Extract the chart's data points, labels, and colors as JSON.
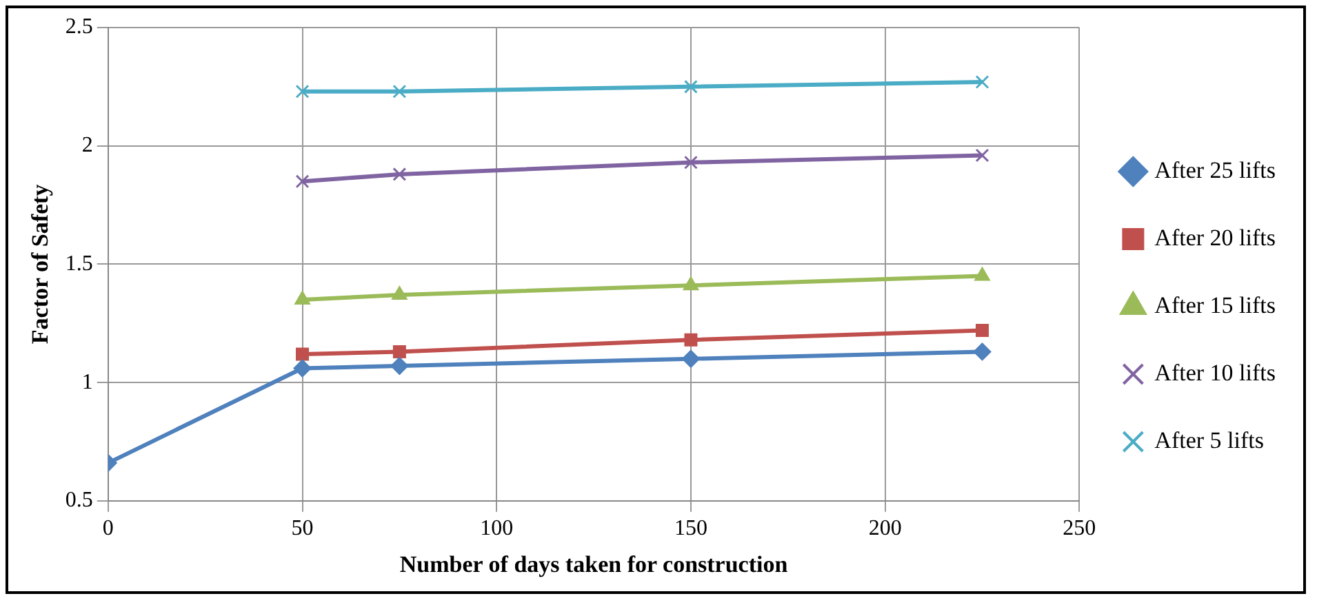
{
  "chart_data": {
    "type": "line",
    "xlabel": "Number of days taken for construction",
    "ylabel": "Factor of Safety",
    "xlim": [
      0,
      250
    ],
    "xticks": [
      0,
      50,
      100,
      150,
      200,
      250
    ],
    "ylim": [
      0.5,
      2.5
    ],
    "yticks": [
      0.5,
      1,
      1.5,
      2,
      2.5
    ],
    "grid": true,
    "legend": "right",
    "series": [
      {
        "name": "After 25 lifts",
        "color": "#4f81bd",
        "marker": "diamond",
        "x": [
          0,
          50,
          75,
          150,
          225
        ],
        "values": [
          0.66,
          1.06,
          1.07,
          1.1,
          1.13
        ]
      },
      {
        "name": "After 20 lifts",
        "color": "#c0504d",
        "marker": "square",
        "x": [
          50,
          75,
          150,
          225
        ],
        "values": [
          1.12,
          1.13,
          1.18,
          1.22
        ]
      },
      {
        "name": "After 15 lifts",
        "color": "#9bbb59",
        "marker": "triangle",
        "x": [
          50,
          75,
          150,
          225
        ],
        "values": [
          1.35,
          1.37,
          1.41,
          1.45
        ]
      },
      {
        "name": "After 10 lifts",
        "color": "#8064a2",
        "marker": "cross",
        "x": [
          50,
          75,
          150,
          225
        ],
        "values": [
          1.85,
          1.88,
          1.93,
          1.96
        ]
      },
      {
        "name": "After 5 lifts",
        "color": "#4bacc6",
        "marker": "cross",
        "x": [
          50,
          75,
          150,
          225
        ],
        "values": [
          2.23,
          2.23,
          2.25,
          2.27
        ]
      }
    ]
  }
}
